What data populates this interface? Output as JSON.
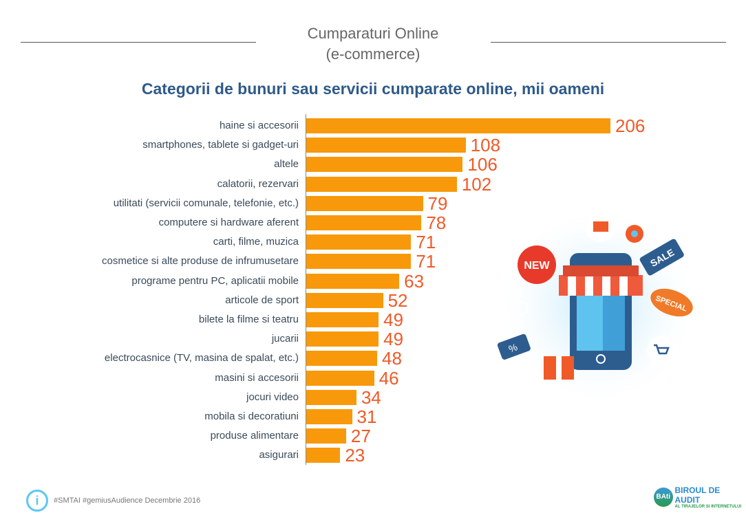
{
  "header": {
    "title_line1": "Cumparaturi Online",
    "title_line2": "(e-commerce)"
  },
  "illustration": {
    "new": "NEW",
    "sale": "SALE",
    "special": "SPECIAL",
    "percent": "%"
  },
  "footer": {
    "source": "#SMTAI #gemiusAudience Decembrie 2016",
    "info_icon": "i",
    "logo_short": "BAti",
    "logo_line1": "BIROUL DE AUDIT",
    "logo_line2": "AL TIRAJELOR SI INTERNETULUI"
  },
  "chart_data": {
    "type": "bar",
    "orientation": "horizontal",
    "title": "Categorii de bunuri sau servicii cumparate online, mii oameni",
    "categories": [
      "haine si accesorii",
      "smartphones, tablete si gadget-uri",
      "altele",
      "calatorii, rezervari",
      "utilitati (servicii comunale, telefonie, etc.)",
      "computere si hardware aferent",
      "carti, filme, muzica",
      "cosmetice si alte produse de infrumusetare",
      "programe pentru PC, aplicatii mobile",
      "articole de sport",
      "bilete la filme si teatru",
      "jucarii",
      "electrocasnice (TV, masina de spalat, etc.)",
      "masini si accesorii",
      "jocuri video",
      "mobila si decoratiuni",
      "produse alimentare",
      "asigurari"
    ],
    "values": [
      206,
      108,
      106,
      102,
      79,
      78,
      71,
      71,
      63,
      52,
      49,
      49,
      48,
      46,
      34,
      31,
      27,
      23
    ],
    "xlim": [
      0,
      206
    ],
    "bar_color": "#f7990a",
    "label_color": "#f05a28",
    "grid": false
  }
}
